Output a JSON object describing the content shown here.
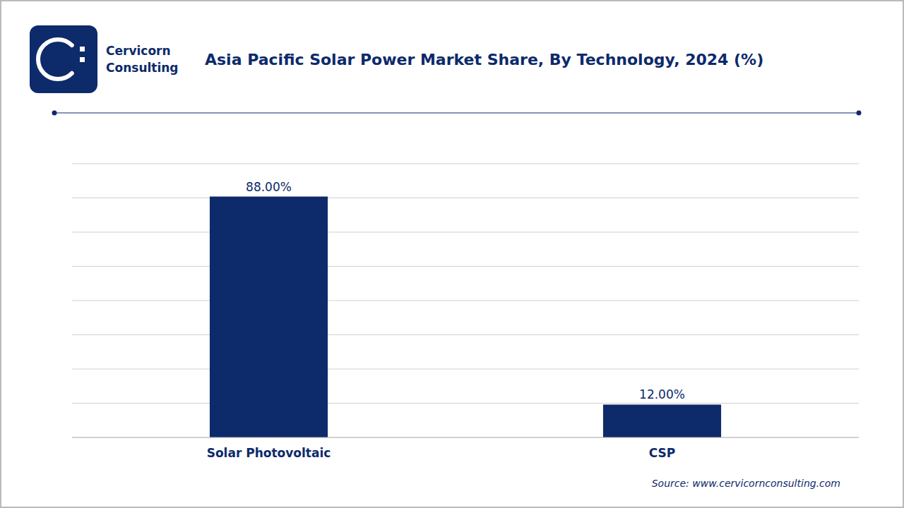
{
  "chart_data": {
    "type": "bar",
    "title": "Asia Pacific Solar Power Market Share, By Technology, 2024 (%)",
    "categories": [
      "Solar Photovoltaic",
      "CSP"
    ],
    "values": [
      88.0,
      12.0
    ],
    "value_labels": [
      "88.00%",
      "12.00%"
    ],
    "data_labels": true,
    "color": "#0d2a6b",
    "ylim": [
      0,
      100
    ],
    "yticks": [
      0,
      12.5,
      25,
      37.5,
      50,
      62.5,
      75,
      87.5,
      100
    ],
    "grid": true,
    "tick_labels": "x",
    "annotations": [
      "Cervicorn",
      "Consulting",
      "Source: www.cervicornconsulting.com"
    ]
  }
}
